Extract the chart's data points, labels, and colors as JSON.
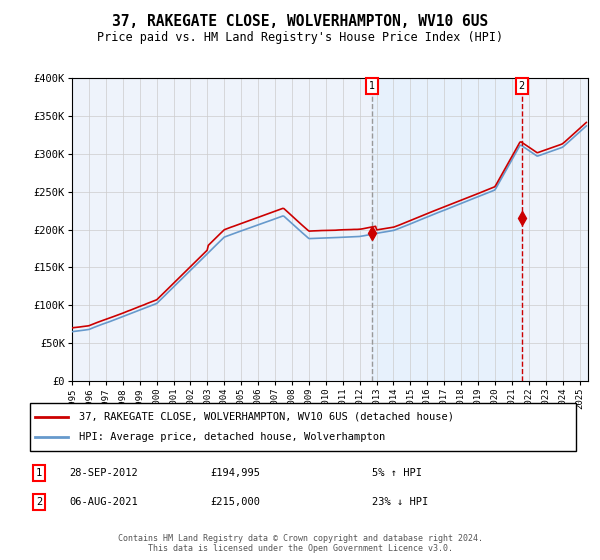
{
  "title": "37, RAKEGATE CLOSE, WOLVERHAMPTON, WV10 6US",
  "subtitle": "Price paid vs. HM Land Registry's House Price Index (HPI)",
  "ylabel_vals": [
    0,
    50000,
    100000,
    150000,
    200000,
    250000,
    300000,
    350000,
    400000
  ],
  "ylabel_labels": [
    "£0",
    "£50K",
    "£100K",
    "£150K",
    "£200K",
    "£250K",
    "£300K",
    "£350K",
    "£400K"
  ],
  "x_start_year": 1995,
  "x_end_year": 2025,
  "sale1_date": 2012.75,
  "sale1_price": 194995,
  "sale2_date": 2021.58,
  "sale2_price": 215000,
  "legend_line1": "37, RAKEGATE CLOSE, WOLVERHAMPTON, WV10 6US (detached house)",
  "legend_line2": "HPI: Average price, detached house, Wolverhampton",
  "footer": "Contains HM Land Registry data © Crown copyright and database right 2024.\nThis data is licensed under the Open Government Licence v3.0.",
  "hpi_color": "#6699cc",
  "price_color": "#cc0000",
  "bg_shade_color": "#ddeeff",
  "grid_color": "#cccccc",
  "vline1_color": "#999999",
  "vline2_color": "#cc0000"
}
